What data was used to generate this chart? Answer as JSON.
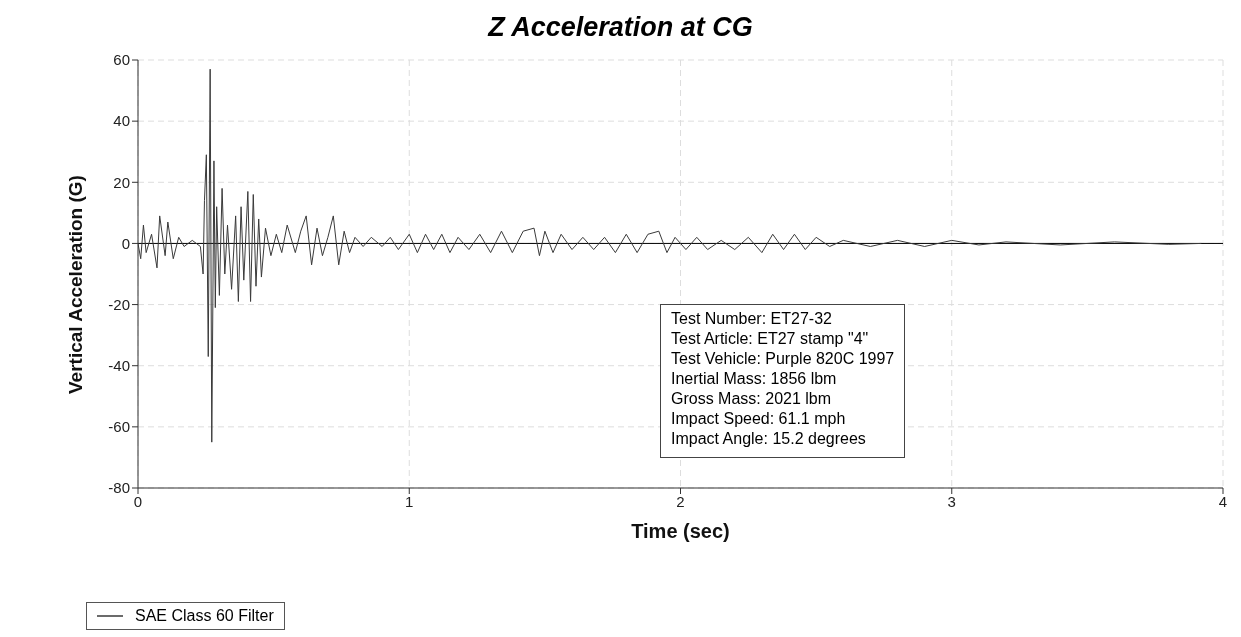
{
  "chart_data": {
    "type": "line",
    "title": "Z Acceleration at CG",
    "xlabel": "Time (sec)",
    "ylabel": "Vertical Acceleration (G)",
    "xlim": [
      0,
      4
    ],
    "xticks": [
      0,
      1,
      2,
      3,
      4
    ],
    "ylim": [
      -80,
      60
    ],
    "yticks": [
      -80,
      -60,
      -40,
      -20,
      0,
      20,
      40,
      60
    ],
    "grid": true,
    "legend": "bottom left",
    "marker": "none",
    "line_style": "solid",
    "ref_lines": [
      {
        "axis": "y",
        "value": 0,
        "color": "#000000"
      }
    ],
    "annotations": [
      "Test Number: ET27-32",
      "Test Article: ET27 stamp \"4\"",
      "Test Vehicle: Purple 820C 1997",
      "Inertial Mass: 1856 lbm",
      "Gross Mass: 2021 lbm",
      "Impact Speed: 61.1 mph",
      "Impact Angle: 15.2 degrees"
    ],
    "series": [
      {
        "name": "SAE Class 60 Filter",
        "color": "#3a3a3a",
        "x": [
          0,
          0.01,
          0.02,
          0.03,
          0.05,
          0.07,
          0.08,
          0.1,
          0.11,
          0.13,
          0.15,
          0.17,
          0.2,
          0.23,
          0.24,
          0.245,
          0.252,
          0.259,
          0.266,
          0.272,
          0.28,
          0.285,
          0.29,
          0.3,
          0.31,
          0.32,
          0.33,
          0.345,
          0.36,
          0.37,
          0.38,
          0.39,
          0.405,
          0.415,
          0.425,
          0.435,
          0.445,
          0.455,
          0.47,
          0.49,
          0.51,
          0.53,
          0.55,
          0.58,
          0.6,
          0.62,
          0.64,
          0.66,
          0.68,
          0.7,
          0.72,
          0.74,
          0.76,
          0.78,
          0.8,
          0.83,
          0.86,
          0.9,
          0.93,
          0.96,
          1.0,
          1.03,
          1.06,
          1.09,
          1.12,
          1.15,
          1.18,
          1.22,
          1.26,
          1.3,
          1.34,
          1.38,
          1.42,
          1.46,
          1.48,
          1.5,
          1.53,
          1.56,
          1.6,
          1.64,
          1.68,
          1.72,
          1.76,
          1.8,
          1.84,
          1.88,
          1.92,
          1.95,
          1.98,
          2.02,
          2.06,
          2.1,
          2.15,
          2.2,
          2.25,
          2.3,
          2.34,
          2.38,
          2.42,
          2.46,
          2.5,
          2.55,
          2.6,
          2.7,
          2.8,
          2.9,
          3.0,
          3.1,
          3.2,
          3.4,
          3.6,
          3.8,
          3.92
        ],
        "values": [
          0,
          -5,
          6,
          -3,
          3,
          -8,
          9,
          -4,
          7,
          -5,
          2,
          -1,
          1,
          -1,
          -10,
          14,
          29,
          -37,
          57,
          -65,
          27,
          -21,
          12,
          -17,
          18,
          -10,
          6,
          -15,
          9,
          -19,
          12,
          -12,
          17,
          -19,
          16,
          -14,
          8,
          -11,
          5,
          -4,
          3,
          -3,
          6,
          -3,
          4,
          9,
          -7,
          5,
          -4,
          2,
          9,
          -7,
          4,
          -3,
          2,
          -1,
          2,
          -1,
          2,
          -2,
          3,
          -3,
          3,
          -2,
          3,
          -3,
          2,
          -2,
          3,
          -3,
          4,
          -3,
          4,
          5,
          -4,
          4,
          -3,
          3,
          -2,
          2,
          -2,
          2,
          -3,
          3,
          -3,
          3,
          4,
          -3,
          2,
          -2,
          2,
          -2,
          1,
          -2,
          2,
          -3,
          3,
          -2,
          3,
          -2,
          2,
          -1,
          1,
          -1,
          1,
          -1,
          1,
          -0.5,
          0.5,
          -0.5,
          0.5,
          -0.3,
          0
        ]
      }
    ]
  }
}
